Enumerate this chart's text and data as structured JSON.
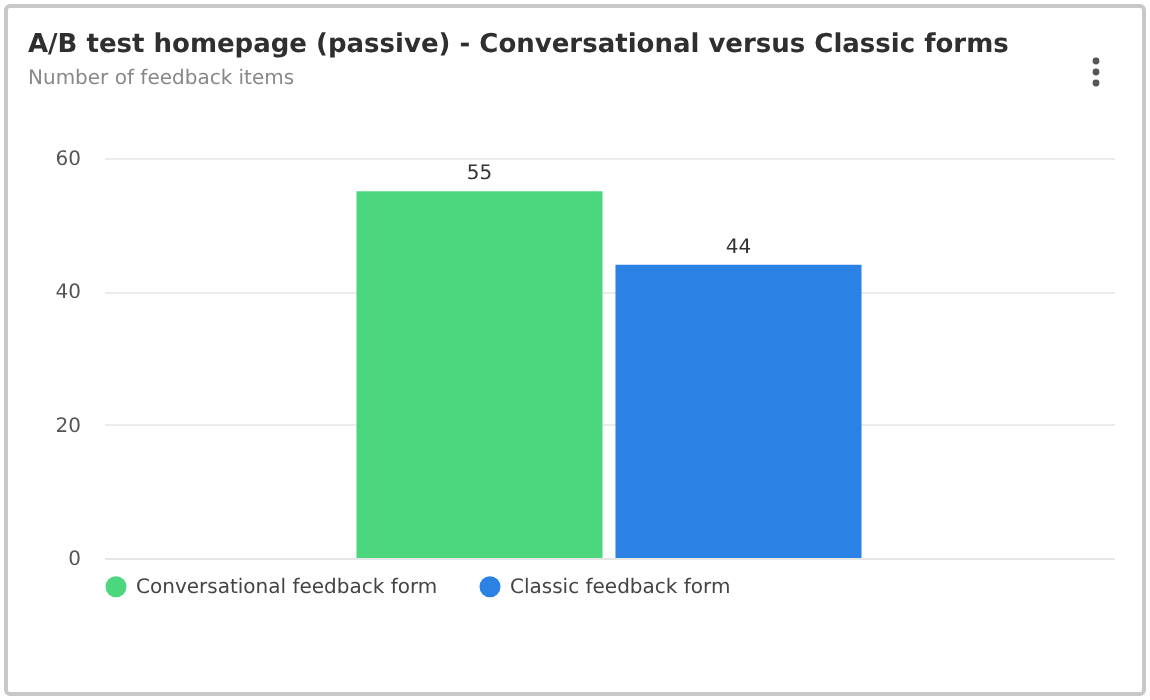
{
  "chart_data": {
    "type": "bar",
    "title": "A/B test homepage (passive) - Conversational versus Classic forms",
    "subtitle": "Number of feedback items",
    "categories": [
      null
    ],
    "series": [
      {
        "name": "Conversational feedback form",
        "color": "#4cd67e",
        "values": [
          55
        ]
      },
      {
        "name": "Classic feedback form",
        "color": "#2b82e4",
        "values": [
          44
        ]
      }
    ],
    "ylim": [
      0,
      60
    ],
    "yticks": [
      0,
      20,
      40,
      60
    ],
    "grid": "y",
    "legend": "bottom",
    "data_labels": true
  }
}
